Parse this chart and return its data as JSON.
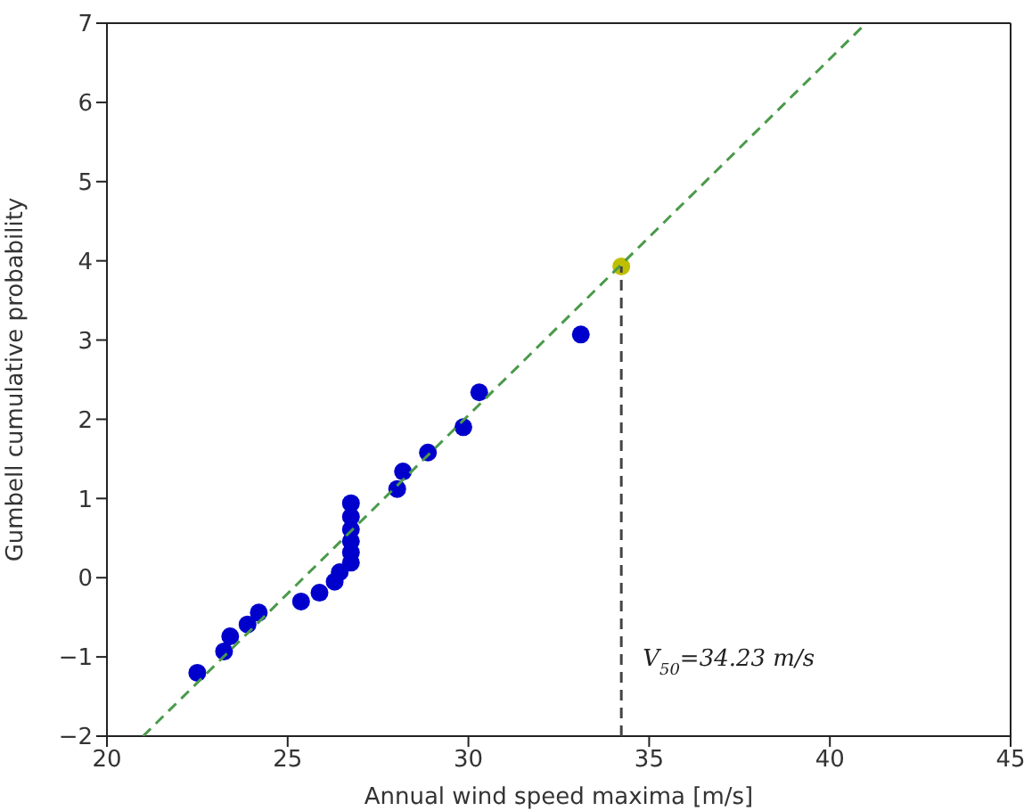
{
  "chart_data": {
    "type": "scatter",
    "xlabel": "Annual wind speed maxima [m/s]",
    "ylabel": "Gumbell cumulative probability",
    "xlim": [
      20,
      45
    ],
    "xticks": [
      20,
      25,
      30,
      35,
      40,
      45
    ],
    "ylim": [
      -2,
      7
    ],
    "yticks": [
      -2,
      -1,
      0,
      1,
      2,
      3,
      4,
      5,
      6,
      7
    ],
    "marker": "circle",
    "series": [
      {
        "color": "#0000cc",
        "x": [
          22.5,
          23.24,
          23.41,
          23.89,
          24.2,
          25.37,
          25.88,
          26.3,
          26.44,
          26.75,
          26.75,
          26.75,
          26.75,
          26.75,
          26.75,
          28.03,
          28.19,
          28.88,
          29.86,
          30.3,
          33.11
        ],
        "values": [
          -1.2,
          -0.93,
          -0.74,
          -0.59,
          -0.44,
          -0.3,
          -0.19,
          -0.05,
          0.07,
          0.19,
          0.32,
          0.46,
          0.61,
          0.77,
          0.94,
          1.12,
          1.34,
          1.58,
          1.9,
          2.34,
          3.07
        ]
      },
      {
        "color": "#bfbf00",
        "x": [
          34.23
        ],
        "values": [
          3.93
        ]
      },
      {
        "type": "line",
        "color": "#4a9a4a",
        "line_style": "dashed",
        "marker": "none",
        "x": [
          21,
          41
        ],
        "values": [
          -2,
          7
        ]
      },
      {
        "type": "line",
        "color": "#444444",
        "line_style": "dashed",
        "marker": "none",
        "x": [
          34.23,
          34.23
        ],
        "values": [
          -2,
          3.93
        ]
      }
    ],
    "annotations": [
      {
        "text": "V$_{50}$=34.23 m/s",
        "x": 34.23,
        "y": -1
      }
    ]
  }
}
